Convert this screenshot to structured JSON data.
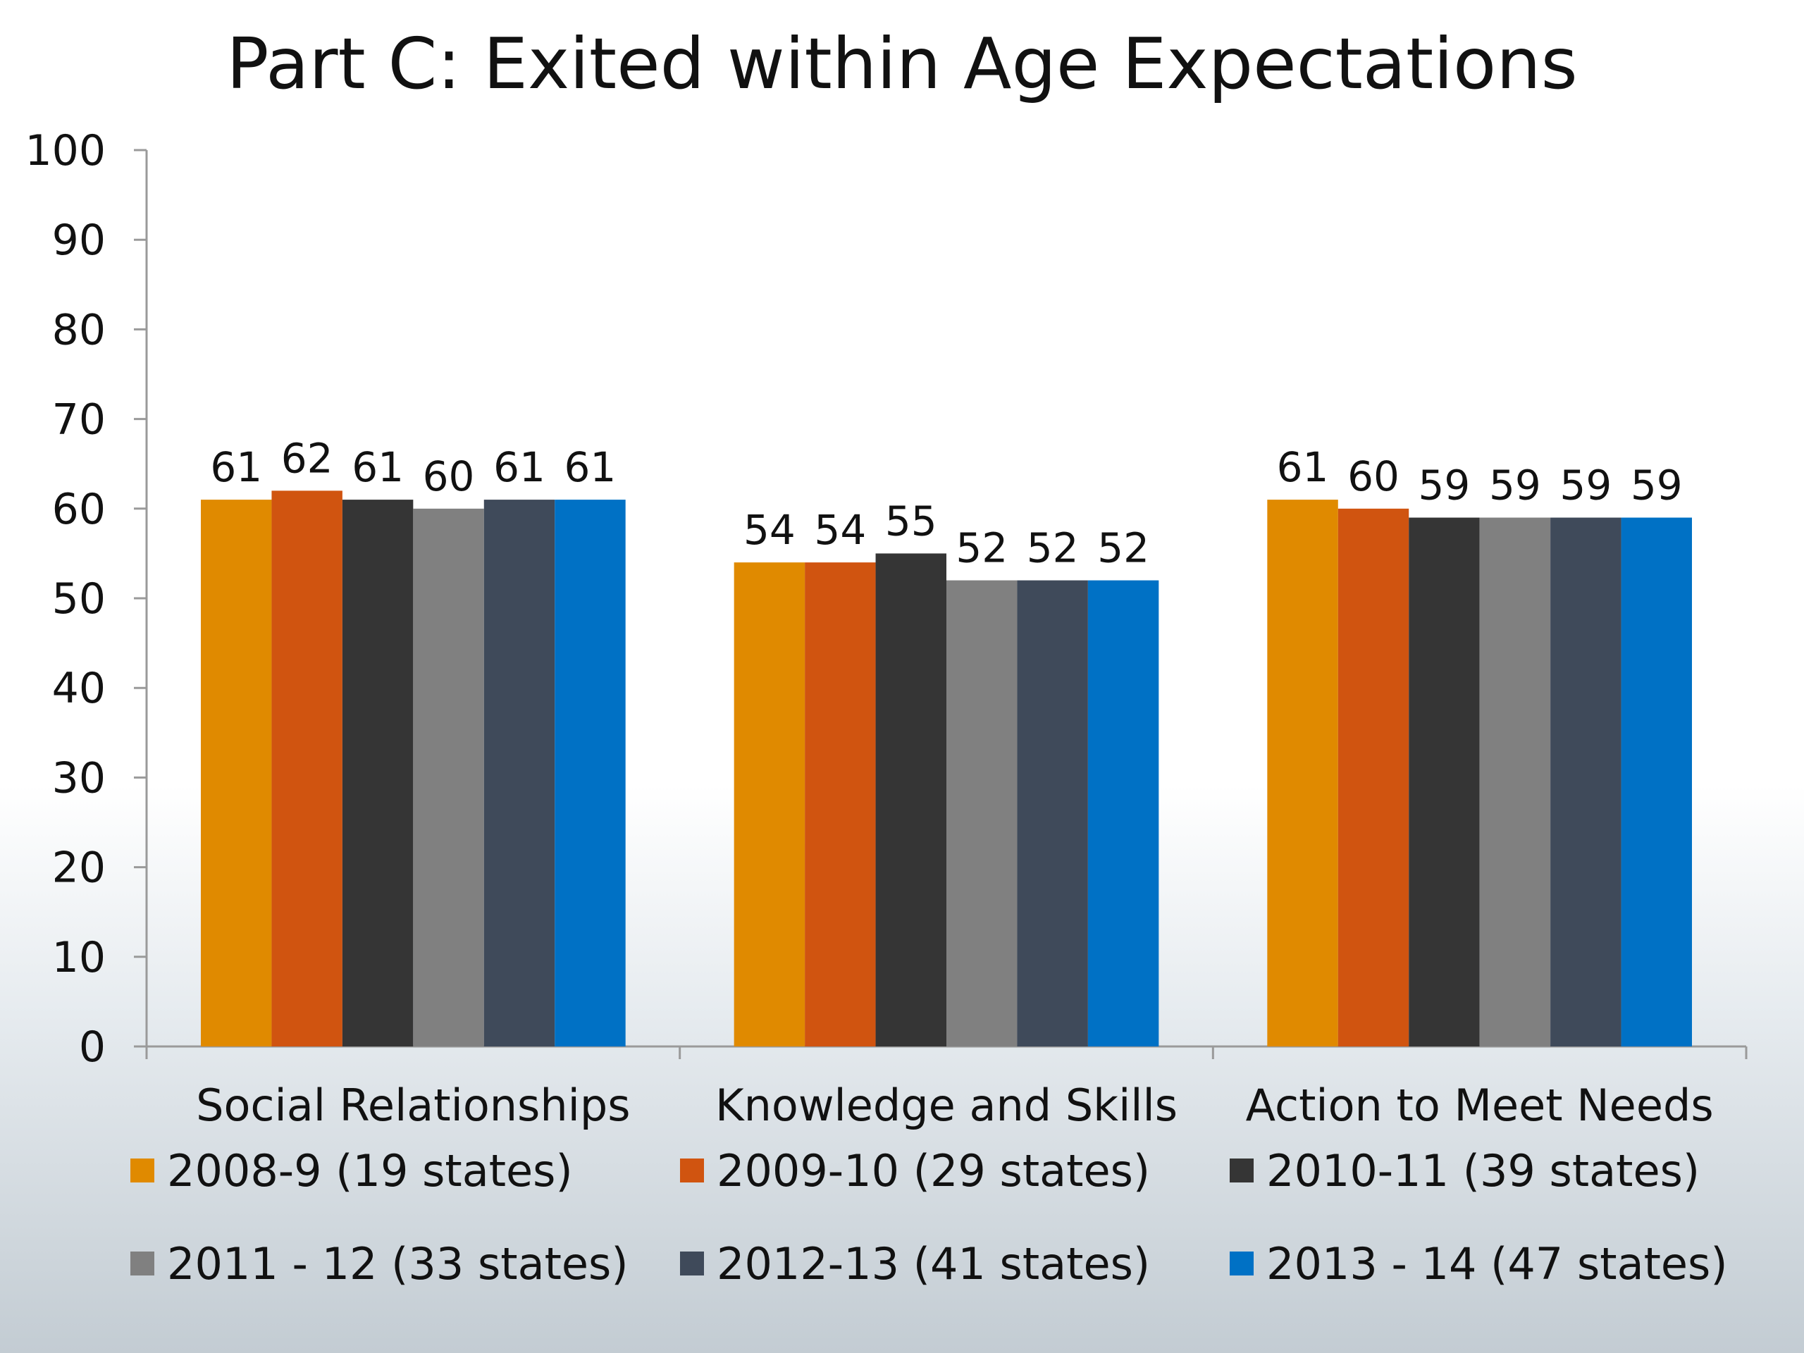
{
  "chart_data": {
    "type": "bar",
    "title": "Part C: Exited within Age Expectations",
    "xlabel": "",
    "ylabel": "",
    "ylim": [
      0,
      100
    ],
    "yticks": [
      0,
      10,
      20,
      30,
      40,
      50,
      60,
      70,
      80,
      90,
      100
    ],
    "categories": [
      "Social Relationships",
      "Knowledge and Skills",
      "Action to Meet Needs"
    ],
    "series": [
      {
        "name": "2008-9 (19 states)",
        "color": "#E08A00",
        "values": [
          61,
          54,
          61
        ]
      },
      {
        "name": "2009-10 (29 states)",
        "color": "#D05410",
        "values": [
          62,
          54,
          60
        ]
      },
      {
        "name": "2010-11 (39 states)",
        "color": "#353535",
        "values": [
          61,
          55,
          59
        ]
      },
      {
        "name": "2011 - 12 (33 states)",
        "color": "#808080",
        "values": [
          60,
          52,
          59
        ]
      },
      {
        "name": "2012-13 (41 states)",
        "color": "#3F4A5A",
        "values": [
          61,
          52,
          59
        ]
      },
      {
        "name": "2013 - 14 (47 states)",
        "color": "#0071C5",
        "values": [
          61,
          52,
          59
        ]
      }
    ],
    "grid": false,
    "data_labels": true,
    "legend_position": "bottom"
  }
}
